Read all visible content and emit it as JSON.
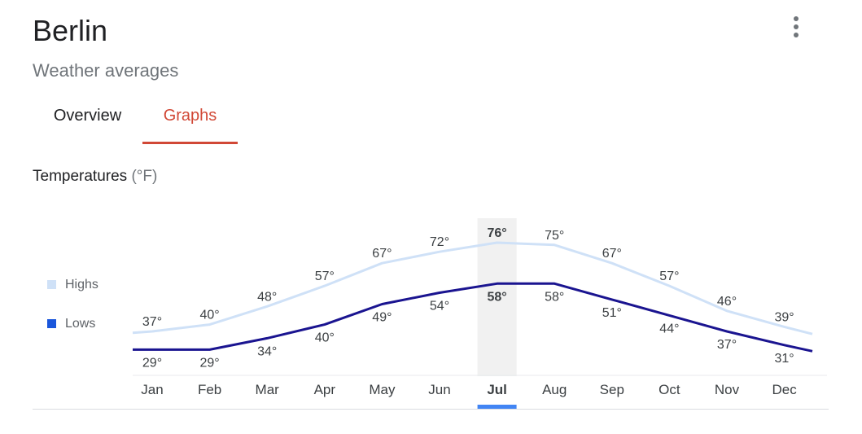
{
  "header": {
    "title": "Berlin",
    "subtitle": "Weather averages",
    "menu_icon": "more-vert-icon"
  },
  "tabs": [
    {
      "label": "Overview",
      "selected": false
    },
    {
      "label": "Graphs",
      "selected": true
    }
  ],
  "section": {
    "title": "Temperatures",
    "unit": "(°F)"
  },
  "legend": [
    {
      "label": "Highs",
      "color": "#cfe1f7"
    },
    {
      "label": "Lows",
      "color": "#1a56db"
    }
  ],
  "colors": {
    "accent_tab": "#d14836",
    "highs_line": "#cfe1f7",
    "lows_line": "#1a1490",
    "selected_month_band": "#f1f1f1",
    "selected_month_marker": "#4285f4"
  },
  "chart_data": {
    "type": "line",
    "categories": [
      "Jan",
      "Feb",
      "Mar",
      "Apr",
      "May",
      "Jun",
      "Jul",
      "Aug",
      "Sep",
      "Oct",
      "Nov",
      "Dec"
    ],
    "series": [
      {
        "name": "Highs",
        "values": [
          37,
          40,
          48,
          57,
          67,
          72,
          76,
          75,
          67,
          57,
          46,
          39
        ]
      },
      {
        "name": "Lows",
        "values": [
          29,
          29,
          34,
          40,
          49,
          54,
          58,
          58,
          51,
          44,
          37,
          31
        ]
      }
    ],
    "value_suffix": "°",
    "selected_index": 6,
    "ylim": [
      20,
      85
    ],
    "grid": false
  }
}
